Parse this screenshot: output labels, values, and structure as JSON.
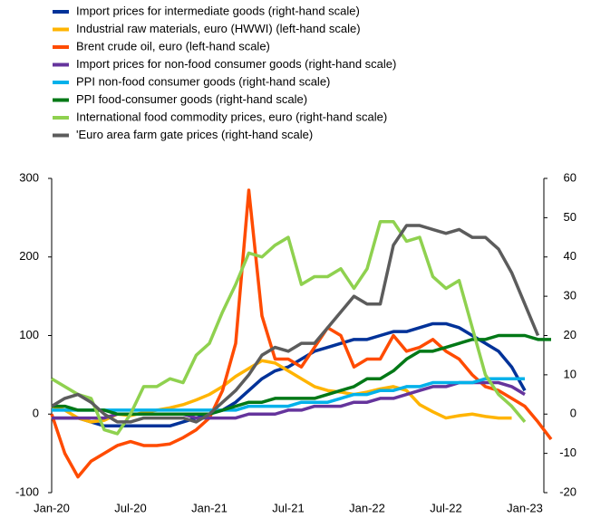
{
  "chart_data": {
    "type": "line",
    "categories": [
      "Jan-20",
      null,
      null,
      null,
      null,
      null,
      "Jul-20",
      null,
      null,
      null,
      null,
      null,
      "Jan-21",
      null,
      null,
      null,
      null,
      null,
      "Jul-21",
      null,
      null,
      null,
      null,
      null,
      "Jan-22",
      null,
      null,
      null,
      null,
      null,
      "Jul-22",
      null,
      null,
      null,
      null,
      null,
      "Jan-23",
      null,
      null
    ],
    "ylim": [
      -100,
      300
    ],
    "yticks": [
      -100,
      0,
      100,
      200,
      300
    ],
    "y2lim": [
      -20,
      60
    ],
    "y2ticks": [
      -20,
      -10,
      0,
      10,
      20,
      30,
      40,
      50,
      60
    ],
    "series": [
      {
        "name": "Import prices for intermediate goods (right-hand scale)",
        "color": "#003299",
        "axis": "y2",
        "values": [
          -1,
          -1,
          -1,
          -2,
          -3,
          -3,
          -3,
          -3,
          -3,
          -3,
          -2,
          -1,
          0,
          1,
          3,
          6,
          9,
          11,
          12,
          14,
          16,
          17,
          18,
          19,
          19,
          20,
          21,
          21,
          22,
          23,
          23,
          22,
          20,
          18,
          16,
          12,
          6,
          null,
          null
        ]
      },
      {
        "name": "Industrial raw materials, euro (HWWI) (left-hand scale)",
        "color": "#ffb400",
        "values": [
          10,
          5,
          -5,
          -10,
          -8,
          0,
          -2,
          2,
          5,
          8,
          12,
          18,
          25,
          35,
          48,
          58,
          68,
          65,
          55,
          45,
          35,
          30,
          28,
          25,
          28,
          32,
          35,
          30,
          12,
          3,
          -5,
          -2,
          0,
          -3,
          -5,
          -5,
          null,
          null,
          null
        ]
      },
      {
        "name": "Brent crude oil, euro (left-hand scale)",
        "color": "#ff4b00",
        "values": [
          0,
          -50,
          -80,
          -60,
          -50,
          -40,
          -35,
          -40,
          -40,
          -38,
          -30,
          -20,
          -5,
          30,
          90,
          285,
          125,
          70,
          70,
          60,
          85,
          110,
          100,
          60,
          70,
          70,
          100,
          80,
          85,
          95,
          80,
          70,
          50,
          35,
          30,
          20,
          10,
          -10,
          -32
        ]
      },
      {
        "name": "Import prices for non-food consumer goods (right-hand scale)",
        "color": "#65349c",
        "axis": "y2",
        "values": [
          -1,
          -1,
          -1,
          -1,
          -1,
          0,
          0,
          0,
          0,
          0,
          0,
          -1,
          -1,
          -1,
          -1,
          0,
          0,
          0,
          1,
          1,
          2,
          2,
          2,
          3,
          3,
          4,
          4,
          5,
          6,
          7,
          7,
          8,
          8,
          8,
          8,
          7,
          5,
          null,
          null
        ]
      },
      {
        "name": "PPI non-food consumer goods (right-hand scale)",
        "color": "#00b1ea",
        "axis": "y2",
        "values": [
          1,
          1,
          1,
          1,
          1,
          1,
          1,
          1,
          1,
          1,
          1,
          1,
          1,
          1,
          1,
          2,
          2,
          2,
          2,
          3,
          3,
          3,
          4,
          5,
          5,
          6,
          6,
          7,
          7,
          8,
          8,
          8,
          8,
          9,
          9,
          9,
          9,
          null,
          null
        ]
      },
      {
        "name": "PPI food-consumer goods (right-hand scale)",
        "color": "#007816",
        "axis": "y2",
        "values": [
          2,
          2,
          1,
          1,
          1,
          0,
          0,
          0,
          0,
          0,
          0,
          0,
          0,
          1,
          2,
          3,
          3,
          4,
          4,
          4,
          4,
          5,
          6,
          7,
          9,
          9,
          11,
          14,
          16,
          16,
          17,
          18,
          19,
          19,
          20,
          20,
          20,
          19,
          19
        ]
      },
      {
        "name": "International food commodity prices, euro (right-hand scale)",
        "color": "#8fd14f",
        "axis": "y2",
        "values": [
          9,
          7,
          5,
          4,
          -4,
          -5,
          0,
          7,
          7,
          9,
          8,
          15,
          18,
          26,
          33,
          41,
          40,
          43,
          45,
          33,
          35,
          35,
          37,
          32,
          37,
          49,
          49,
          44,
          45,
          35,
          32,
          34,
          22,
          10,
          5,
          2,
          -2,
          null,
          null
        ]
      },
      {
        "name": "'Euro area farm gate prices (right-hand scale)",
        "color": "#5c5c5c",
        "axis": "y2",
        "values": [
          2,
          4,
          5,
          3,
          0,
          -2,
          -2,
          -1,
          -1,
          -1,
          -1,
          -2,
          0,
          3,
          6,
          10,
          15,
          17,
          16,
          18,
          18,
          22,
          26,
          30,
          28,
          28,
          43,
          48,
          48,
          47,
          46,
          47,
          45,
          45,
          42,
          36,
          28,
          20,
          null
        ]
      }
    ]
  }
}
